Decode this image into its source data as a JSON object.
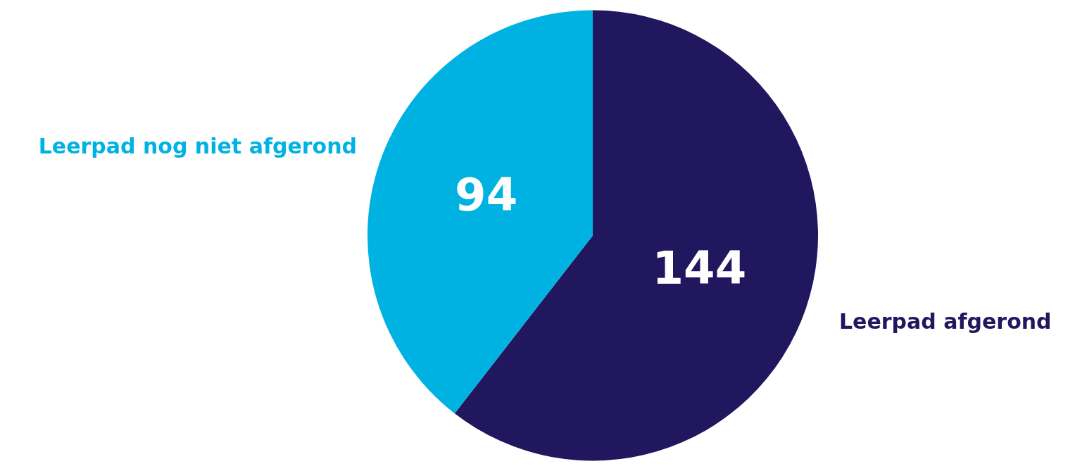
{
  "chart_data": {
    "type": "pie",
    "categories": [
      "Leerpad afgerond",
      "Leerpad nog niet afgerond"
    ],
    "values": [
      144,
      94
    ],
    "colors": [
      "#20175e",
      "#00b2e2"
    ],
    "data_labels": true,
    "legend": false
  }
}
